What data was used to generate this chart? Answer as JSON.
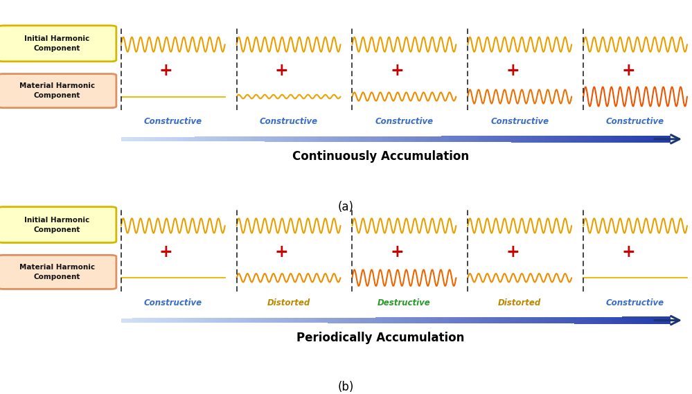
{
  "bg_color": "#ffffff",
  "panel_a": {
    "title": "Continuously Accumulation",
    "labels": [
      "Constructive",
      "Constructive",
      "Constructive",
      "Constructive",
      "Constructive"
    ],
    "label_colors": [
      "#3a6ec8",
      "#3a6ec8",
      "#3a6ec8",
      "#3a6ec8",
      "#3a6ec8"
    ],
    "upper_amplitudes": [
      0.38,
      0.38,
      0.38,
      0.38,
      0.38
    ],
    "lower_amplitudes": [
      0.02,
      0.1,
      0.22,
      0.36,
      0.5
    ]
  },
  "panel_b": {
    "title": "Periodically Accumulation",
    "labels": [
      "Constructive",
      "Distorted",
      "Destructive",
      "Distorted",
      "Constructive"
    ],
    "label_colors": [
      "#3a6ec8",
      "#bb8800",
      "#2a9a2a",
      "#bb8800",
      "#3a6ec8"
    ],
    "upper_amplitudes": [
      0.38,
      0.38,
      0.38,
      0.38,
      0.38
    ],
    "lower_amplitudes": [
      0.02,
      0.22,
      0.42,
      0.22,
      0.02
    ]
  },
  "box1_facecolor": "#ffffc8",
  "box1_edgecolor": "#d4b800",
  "box2_facecolor": "#ffe4cc",
  "box2_edgecolor": "#e09060",
  "upper_wave_color": "#e8a000",
  "lower_wave_color_dark": "#e06000",
  "plus_color": "#cc0000",
  "arrow_dark_color": "#1a3570",
  "dashed_color": "#111111",
  "label_a": "(a)",
  "label_b": "(b)",
  "wave_freq_cycles": 12,
  "wave_lw": 1.5
}
